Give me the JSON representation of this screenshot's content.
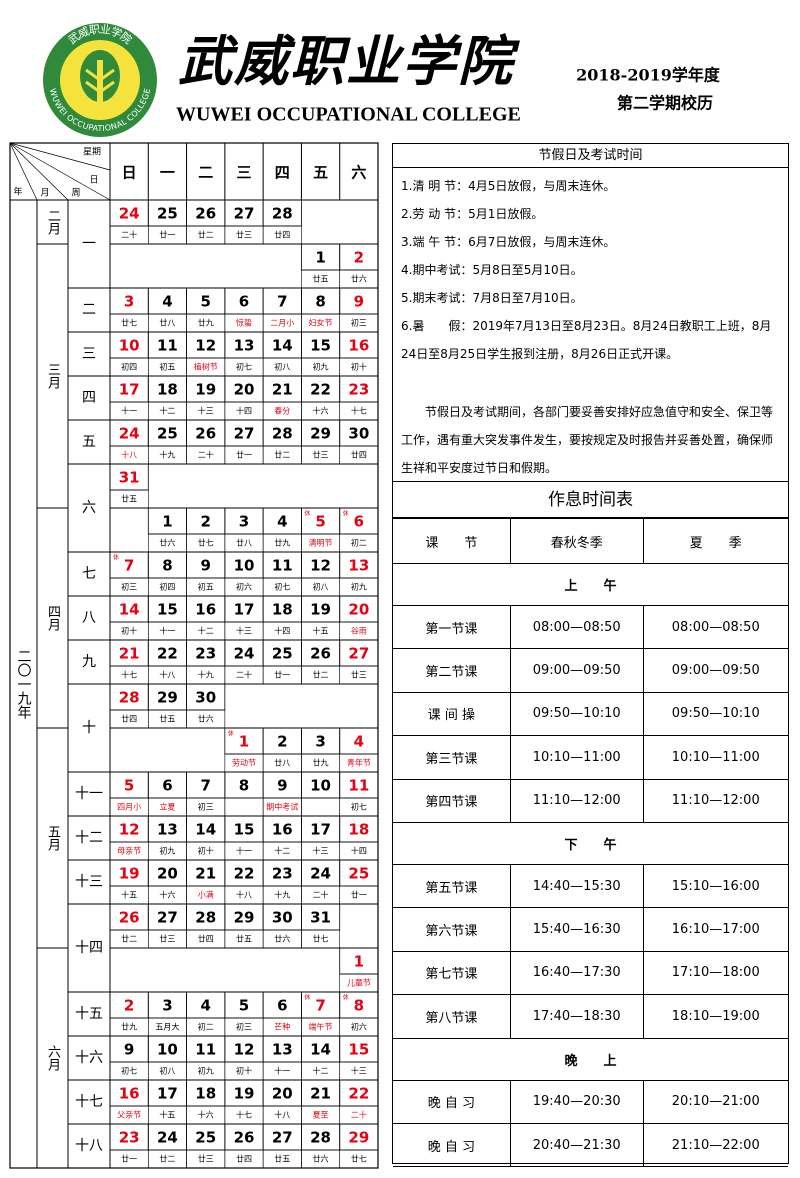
{
  "header": {
    "logo": {
      "top_text": "武威职业学院",
      "ring_text": "WUWEI OCCUPATIONAL COLLEGE"
    },
    "title_cn": "武威职业学院",
    "title_en": "WUWEI OCCUPATIONAL COLLEGE",
    "year": "2018-2019学年度",
    "term": "第二学期校历"
  },
  "calendar": {
    "corner": {
      "weekday": "星期",
      "day": "日",
      "year": "年",
      "month": "月",
      "week": "周"
    },
    "weekdays": [
      "日",
      "一",
      "二",
      "三",
      "四",
      "五",
      "六"
    ],
    "year_label": "二〇一九年",
    "rows": [
      {
        "month": "二月",
        "week": "一",
        "days": [
          24,
          25,
          26,
          27,
          28,
          null,
          null
        ],
        "lunar": [
          "二十",
          "廿一",
          "廿二",
          "廿三",
          "廿四",
          null,
          null
        ],
        "day_colors": [
          "#e60012",
          "#000",
          "#000",
          "#000",
          "#000",
          null,
          null
        ],
        "lunar_colors": [
          "#000",
          "#000",
          "#000",
          "#000",
          "#000",
          null,
          null
        ]
      },
      {
        "month": "三月",
        "week": null,
        "days": [
          null,
          null,
          null,
          null,
          null,
          1,
          2
        ],
        "lunar": [
          null,
          null,
          null,
          null,
          null,
          "廿五",
          "廿六"
        ],
        "day_colors": [
          null,
          null,
          null,
          null,
          null,
          "#000",
          "#e60012"
        ],
        "lunar_colors": [
          null,
          null,
          null,
          null,
          null,
          "#000",
          "#000"
        ]
      },
      {
        "month": null,
        "week": "二",
        "days": [
          3,
          4,
          5,
          6,
          7,
          8,
          9
        ],
        "lunar": [
          "廿七",
          "廿八",
          "廿九",
          "惊蛰",
          "二月小",
          "妇女节",
          "初三"
        ],
        "day_colors": [
          "#e60012",
          "#000",
          "#000",
          "#000",
          "#000",
          "#000",
          "#e60012"
        ],
        "lunar_colors": [
          "#000",
          "#000",
          "#000",
          "#e60012",
          "#e60012",
          "#e60012",
          "#000"
        ]
      },
      {
        "month": null,
        "week": "三",
        "days": [
          10,
          11,
          12,
          13,
          14,
          15,
          16
        ],
        "lunar": [
          "初四",
          "初五",
          "植树节",
          "初七",
          "初八",
          "初九",
          "初十"
        ],
        "day_colors": [
          "#e60012",
          "#000",
          "#000",
          "#000",
          "#000",
          "#000",
          "#e60012"
        ],
        "lunar_colors": [
          "#000",
          "#000",
          "#e60012",
          "#000",
          "#000",
          "#000",
          "#000"
        ]
      },
      {
        "month": null,
        "week": "四",
        "days": [
          17,
          18,
          19,
          20,
          21,
          22,
          23
        ],
        "lunar": [
          "十一",
          "十二",
          "十三",
          "十四",
          "春分",
          "十六",
          "十七"
        ],
        "day_colors": [
          "#e60012",
          "#000",
          "#000",
          "#000",
          "#000",
          "#000",
          "#e60012"
        ],
        "lunar_colors": [
          "#000",
          "#000",
          "#000",
          "#000",
          "#e60012",
          "#000",
          "#000"
        ]
      },
      {
        "month": null,
        "week": "五",
        "days": [
          24,
          25,
          26,
          27,
          28,
          29,
          30
        ],
        "lunar": [
          "十八",
          "十九",
          "二十",
          "廿一",
          "廿二",
          "廿三",
          "廿四"
        ],
        "day_colors": [
          "#e60012",
          "#000",
          "#000",
          "#000",
          "#000",
          "#000",
          "#000"
        ],
        "lunar_colors": [
          "#e60012",
          "#000",
          "#000",
          "#000",
          "#000",
          "#000",
          "#000"
        ]
      },
      {
        "month": null,
        "week": "六",
        "days": [
          31,
          null,
          null,
          null,
          null,
          null,
          null
        ],
        "lunar": [
          "廿五",
          null,
          null,
          null,
          null,
          null,
          null
        ],
        "day_colors": [
          "#e60012",
          null,
          null,
          null,
          null,
          null,
          null
        ],
        "lunar_colors": [
          "#000",
          null,
          null,
          null,
          null,
          null,
          null
        ]
      },
      {
        "month": "四月",
        "week": null,
        "days": [
          null,
          1,
          2,
          3,
          4,
          5,
          6
        ],
        "lunar": [
          null,
          "廿六",
          "廿七",
          "廿八",
          "廿九",
          "清明节",
          "初二"
        ],
        "day_colors": [
          null,
          "#000",
          "#000",
          "#000",
          "#000",
          "#e60012",
          "#e60012"
        ],
        "lunar_colors": [
          null,
          "#000",
          "#000",
          "#000",
          "#000",
          "#e60012",
          "#000"
        ],
        "rest": [
          null,
          null,
          null,
          null,
          null,
          "休",
          "休"
        ]
      },
      {
        "month": null,
        "week": "七",
        "days": [
          7,
          8,
          9,
          10,
          11,
          12,
          13
        ],
        "lunar": [
          "初三",
          "初四",
          "初五",
          "初六",
          "初七",
          "初八",
          "初九"
        ],
        "day_colors": [
          "#e60012",
          "#000",
          "#000",
          "#000",
          "#000",
          "#000",
          "#e60012"
        ],
        "lunar_colors": [
          "#000",
          "#000",
          "#000",
          "#000",
          "#000",
          "#000",
          "#000"
        ],
        "rest": [
          "休",
          null,
          null,
          null,
          null,
          null,
          null
        ]
      },
      {
        "month": null,
        "week": "八",
        "days": [
          14,
          15,
          16,
          17,
          18,
          19,
          20
        ],
        "lunar": [
          "初十",
          "十一",
          "十二",
          "十三",
          "十四",
          "十五",
          "谷雨"
        ],
        "day_colors": [
          "#e60012",
          "#000",
          "#000",
          "#000",
          "#000",
          "#000",
          "#e60012"
        ],
        "lunar_colors": [
          "#000",
          "#000",
          "#000",
          "#000",
          "#000",
          "#000",
          "#e60012"
        ]
      },
      {
        "month": null,
        "week": "九",
        "days": [
          21,
          22,
          23,
          24,
          25,
          26,
          27
        ],
        "lunar": [
          "十七",
          "十八",
          "十九",
          "二十",
          "廿一",
          "廿二",
          "廿三"
        ],
        "day_colors": [
          "#e60012",
          "#000",
          "#000",
          "#000",
          "#000",
          "#000",
          "#e60012"
        ],
        "lunar_colors": [
          "#000",
          "#000",
          "#000",
          "#000",
          "#000",
          "#000",
          "#000"
        ]
      },
      {
        "month": null,
        "week": "十",
        "days": [
          28,
          29,
          30,
          null,
          null,
          null,
          null
        ],
        "lunar": [
          "廿四",
          "廿五",
          "廿六",
          null,
          null,
          null,
          null
        ],
        "day_colors": [
          "#e60012",
          "#000",
          "#000",
          null,
          null,
          null,
          null
        ],
        "lunar_colors": [
          "#000",
          "#000",
          "#000",
          null,
          null,
          null,
          null
        ]
      },
      {
        "month": "五月",
        "week": null,
        "days": [
          null,
          null,
          null,
          1,
          2,
          3,
          4
        ],
        "lunar": [
          null,
          null,
          null,
          "劳动节",
          "廿八",
          "廿九",
          "青年节"
        ],
        "day_colors": [
          null,
          null,
          null,
          "#e60012",
          "#000",
          "#000",
          "#e60012"
        ],
        "lunar_colors": [
          null,
          null,
          null,
          "#e60012",
          "#000",
          "#000",
          "#e60012"
        ],
        "rest": [
          null,
          null,
          null,
          "休",
          null,
          null,
          null
        ]
      },
      {
        "month": null,
        "week": "十一",
        "days": [
          5,
          6,
          7,
          8,
          9,
          10,
          11
        ],
        "lunar": [
          "四月小",
          "立夏",
          "初三",
          null,
          "期中考试",
          null,
          "初七"
        ],
        "day_colors": [
          "#e60012",
          "#000",
          "#000",
          "#000",
          "#000",
          "#000",
          "#e60012"
        ],
        "lunar_colors": [
          "#e60012",
          "#e60012",
          "#000",
          null,
          "#e60012",
          null,
          "#000"
        ]
      },
      {
        "month": null,
        "week": "十二",
        "days": [
          12,
          13,
          14,
          15,
          16,
          17,
          18
        ],
        "lunar": [
          "母亲节",
          "初九",
          "初十",
          "十一",
          "十二",
          "十三",
          "十四"
        ],
        "day_colors": [
          "#e60012",
          "#000",
          "#000",
          "#000",
          "#000",
          "#000",
          "#e60012"
        ],
        "lunar_colors": [
          "#e60012",
          "#000",
          "#000",
          "#000",
          "#000",
          "#000",
          "#000"
        ]
      },
      {
        "month": null,
        "week": "十三",
        "days": [
          19,
          20,
          21,
          22,
          23,
          24,
          25
        ],
        "lunar": [
          "十五",
          "十六",
          "小满",
          "十八",
          "十九",
          "二十",
          "廿一"
        ],
        "day_colors": [
          "#e60012",
          "#000",
          "#000",
          "#000",
          "#000",
          "#000",
          "#e60012"
        ],
        "lunar_colors": [
          "#000",
          "#000",
          "#e60012",
          "#000",
          "#000",
          "#000",
          "#000"
        ]
      },
      {
        "month": null,
        "week": "十四",
        "days": [
          26,
          27,
          28,
          29,
          30,
          31,
          null
        ],
        "lunar": [
          "廿二",
          "廿三",
          "廿四",
          "廿五",
          "廿六",
          "廿七",
          null
        ],
        "day_colors": [
          "#e60012",
          "#000",
          "#000",
          "#000",
          "#000",
          "#000",
          null
        ],
        "lunar_colors": [
          "#000",
          "#000",
          "#000",
          "#000",
          "#000",
          "#000",
          null
        ]
      },
      {
        "month": "六月",
        "week": null,
        "days": [
          null,
          null,
          null,
          null,
          null,
          null,
          1
        ],
        "lunar": [
          null,
          null,
          null,
          null,
          null,
          null,
          "儿童节"
        ],
        "day_colors": [
          null,
          null,
          null,
          null,
          null,
          null,
          "#e60012"
        ],
        "lunar_colors": [
          null,
          null,
          null,
          null,
          null,
          null,
          "#e60012"
        ]
      },
      {
        "month": null,
        "week": "十五",
        "days": [
          2,
          3,
          4,
          5,
          6,
          7,
          8
        ],
        "lunar": [
          "廿九",
          "五月大",
          "初二",
          "初三",
          "芒种",
          "端午节",
          "初六"
        ],
        "day_colors": [
          "#e60012",
          "#000",
          "#000",
          "#000",
          "#000",
          "#e60012",
          "#e60012"
        ],
        "lunar_colors": [
          "#000",
          "#000",
          "#000",
          "#000",
          "#e60012",
          "#e60012",
          "#000"
        ],
        "rest": [
          null,
          null,
          null,
          null,
          null,
          "休",
          "休"
        ]
      },
      {
        "month": null,
        "week": "十六",
        "days": [
          9,
          10,
          11,
          12,
          13,
          14,
          15
        ],
        "lunar": [
          "初七",
          "初八",
          "初九",
          "初十",
          "十一",
          "十二",
          "十三"
        ],
        "day_colors": [
          "#000",
          "#000",
          "#000",
          "#000",
          "#000",
          "#000",
          "#e60012"
        ],
        "lunar_colors": [
          "#000",
          "#000",
          "#000",
          "#000",
          "#000",
          "#000",
          "#000"
        ]
      },
      {
        "month": null,
        "week": "十七",
        "days": [
          16,
          17,
          18,
          19,
          20,
          21,
          22
        ],
        "lunar": [
          "父亲节",
          "十五",
          "十六",
          "十七",
          "十八",
          "夏至",
          "二十"
        ],
        "day_colors": [
          "#e60012",
          "#000",
          "#000",
          "#000",
          "#000",
          "#000",
          "#e60012"
        ],
        "lunar_colors": [
          "#e60012",
          "#000",
          "#000",
          "#000",
          "#000",
          "#e60012",
          "#e60012"
        ]
      },
      {
        "month": null,
        "week": "十八",
        "days": [
          23,
          24,
          25,
          26,
          27,
          28,
          29
        ],
        "lunar": [
          "廿一",
          "廿二",
          "廿三",
          "廿四",
          "廿五",
          "廿六",
          "廿七"
        ],
        "day_colors": [
          "#e60012",
          "#000",
          "#000",
          "#000",
          "#000",
          "#000",
          "#e60012"
        ],
        "lunar_colors": [
          "#000",
          "#000",
          "#000",
          "#000",
          "#000",
          "#000",
          "#000"
        ]
      }
    ]
  },
  "holidays": {
    "title": "节假日及考试时间",
    "items": [
      "1.清 明 节：4月5日放假，与周末连休。",
      "2.劳 动 节：5月1日放假。",
      "3.端 午 节：6月7日放假，与周末连休。",
      "4.期中考试：5月8日至5月10日。",
      "5.期末考试：7月8日至7月10日。",
      "6.暑　　假：2019年7月13日至8月23日。8月24日教职工上班，8月24日至8月25日学生报到注册，8月26日正式开课。"
    ],
    "note": "节假日及考试期间，各部门要妥善安排好应急值守和安全、保卫等工作，遇有重大突发事件发生，要按规定及时报告并妥善处置，确保师生祥和平安度过节日和假期。"
  },
  "schedule": {
    "title": "作息时间表",
    "columns": [
      "课　　节",
      "春秋冬季",
      "夏　　季"
    ],
    "sections": [
      {
        "name": "上　　午",
        "rows": [
          [
            "第一节课",
            "08:00—08:50",
            "08:00—08:50"
          ],
          [
            "第二节课",
            "09:00—09:50",
            "09:00—09:50"
          ],
          [
            "课 间 操",
            "09:50—10:10",
            "09:50—10:10"
          ],
          [
            "第三节课",
            "10:10—11:00",
            "10:10—11:00"
          ],
          [
            "第四节课",
            "11:10—12:00",
            "11:10—12:00"
          ]
        ]
      },
      {
        "name": "下　　午",
        "rows": [
          [
            "第五节课",
            "14:40—15:30",
            "15:10—16:00"
          ],
          [
            "第六节课",
            "15:40—16:30",
            "16:10—17:00"
          ],
          [
            "第七节课",
            "16:40—17:30",
            "17:10—18:00"
          ],
          [
            "第八节课",
            "17:40—18:30",
            "18:10—19:00"
          ]
        ]
      },
      {
        "name": "晚　　上",
        "rows": [
          [
            "晚 自 习",
            "19:40—20:30",
            "20:10—21:00"
          ],
          [
            "晚 自 习",
            "20:40—21:30",
            "21:10—22:00"
          ]
        ]
      }
    ]
  }
}
